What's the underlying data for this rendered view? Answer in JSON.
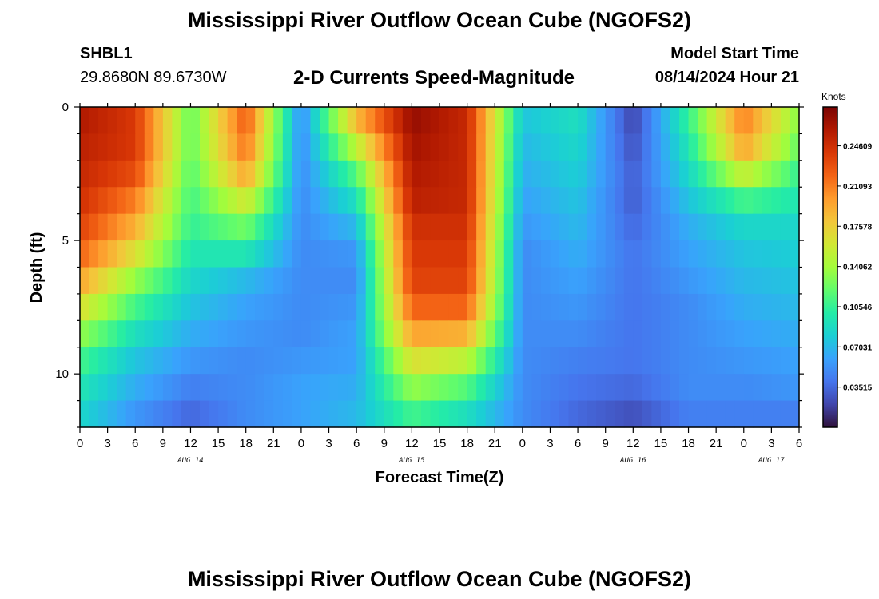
{
  "page": {
    "title": "Mississippi River Outflow Ocean Cube (NGOFS2)",
    "repeat_title": "Mississippi River Outflow Ocean Cube (NGOFS2)",
    "station_id": "SHBL1",
    "station_coords": "29.8680N  89.6730W",
    "subtitle": "2-D Currents Speed-Magnitude",
    "model_start_label": "Model Start Time",
    "model_start_value": "08/14/2024 Hour 21"
  },
  "chart_data": {
    "type": "heatmap",
    "title": "2-D Currents Speed-Magnitude",
    "xlabel": "Forecast Time(Z)",
    "ylabel": "Depth (ft)",
    "x_hours_range": [
      0,
      78
    ],
    "y_range": [
      0,
      12
    ],
    "x_tick_labels": [
      "0",
      "3",
      "6",
      "9",
      "12",
      "15",
      "18",
      "21",
      "0",
      "3",
      "6",
      "9",
      "12",
      "15",
      "18",
      "21",
      "0",
      "3",
      "6",
      "9",
      "12",
      "15",
      "18",
      "21",
      "0",
      "3",
      "6"
    ],
    "y_tick_labels": [
      "0",
      "5",
      "10"
    ],
    "y_tick_values": [
      0,
      5,
      10
    ],
    "day_labels": [
      {
        "text": "AUG 14",
        "hour": 12
      },
      {
        "text": "AUG 15",
        "hour": 36
      },
      {
        "text": "AUG 16",
        "hour": 60
      },
      {
        "text": "AUG 17",
        "hour": 75
      }
    ],
    "colorbar": {
      "unit": "Knots",
      "range": [
        0,
        0.28
      ],
      "tick_labels": [
        "0.24609",
        "0.21093",
        "0.17578",
        "0.14062",
        "0.10546",
        "0.07031",
        "0.03515"
      ],
      "tick_values": [
        0.24609,
        0.21093,
        0.17578,
        0.14062,
        0.10546,
        0.07031,
        0.03515
      ],
      "colors": [
        "#30123b",
        "#4145ab",
        "#4675ed",
        "#39a2fc",
        "#1bcfd4",
        "#24eca6",
        "#61fc6c",
        "#a4fc3b",
        "#d1e834",
        "#f3c63a",
        "#fe9b2d",
        "#f36315",
        "#d93806",
        "#b11901",
        "#7a0403"
      ]
    },
    "depth_levels_ft": [
      0,
      1,
      2,
      3,
      4,
      5,
      6,
      7,
      8,
      9,
      10,
      11,
      12
    ],
    "time_steps_hours": [
      0,
      6,
      12,
      18,
      24,
      30,
      36,
      42,
      48,
      54,
      60,
      66,
      72,
      78
    ],
    "values_knots": [
      [
        0.26,
        0.24,
        0.12,
        0.23,
        0.05,
        0.2,
        0.27,
        0.25,
        0.08,
        0.09,
        0.02,
        0.11,
        0.21,
        0.13
      ],
      [
        0.26,
        0.24,
        0.12,
        0.22,
        0.05,
        0.17,
        0.27,
        0.25,
        0.07,
        0.09,
        0.02,
        0.1,
        0.21,
        0.13
      ],
      [
        0.25,
        0.24,
        0.12,
        0.21,
        0.05,
        0.13,
        0.26,
        0.25,
        0.07,
        0.08,
        0.03,
        0.09,
        0.18,
        0.11
      ],
      [
        0.25,
        0.22,
        0.11,
        0.18,
        0.05,
        0.1,
        0.26,
        0.25,
        0.06,
        0.08,
        0.03,
        0.08,
        0.13,
        0.1
      ],
      [
        0.24,
        0.2,
        0.11,
        0.14,
        0.05,
        0.08,
        0.25,
        0.25,
        0.06,
        0.07,
        0.03,
        0.07,
        0.09,
        0.09
      ],
      [
        0.23,
        0.18,
        0.1,
        0.11,
        0.05,
        0.06,
        0.24,
        0.24,
        0.05,
        0.07,
        0.04,
        0.06,
        0.08,
        0.08
      ],
      [
        0.21,
        0.15,
        0.09,
        0.08,
        0.05,
        0.05,
        0.24,
        0.24,
        0.05,
        0.06,
        0.04,
        0.06,
        0.07,
        0.08
      ],
      [
        0.18,
        0.12,
        0.08,
        0.06,
        0.05,
        0.05,
        0.23,
        0.23,
        0.05,
        0.06,
        0.04,
        0.05,
        0.07,
        0.07
      ],
      [
        0.15,
        0.1,
        0.07,
        0.06,
        0.05,
        0.06,
        0.21,
        0.21,
        0.05,
        0.05,
        0.04,
        0.05,
        0.06,
        0.07
      ],
      [
        0.12,
        0.08,
        0.06,
        0.05,
        0.05,
        0.06,
        0.18,
        0.17,
        0.05,
        0.05,
        0.04,
        0.05,
        0.06,
        0.06
      ],
      [
        0.1,
        0.07,
        0.05,
        0.05,
        0.06,
        0.06,
        0.15,
        0.13,
        0.05,
        0.04,
        0.04,
        0.05,
        0.05,
        0.06
      ],
      [
        0.09,
        0.06,
        0.04,
        0.05,
        0.06,
        0.07,
        0.12,
        0.1,
        0.05,
        0.04,
        0.03,
        0.05,
        0.05,
        0.05
      ],
      [
        0.08,
        0.05,
        0.03,
        0.05,
        0.06,
        0.07,
        0.1,
        0.08,
        0.05,
        0.03,
        0.02,
        0.04,
        0.04,
        0.04
      ]
    ]
  }
}
